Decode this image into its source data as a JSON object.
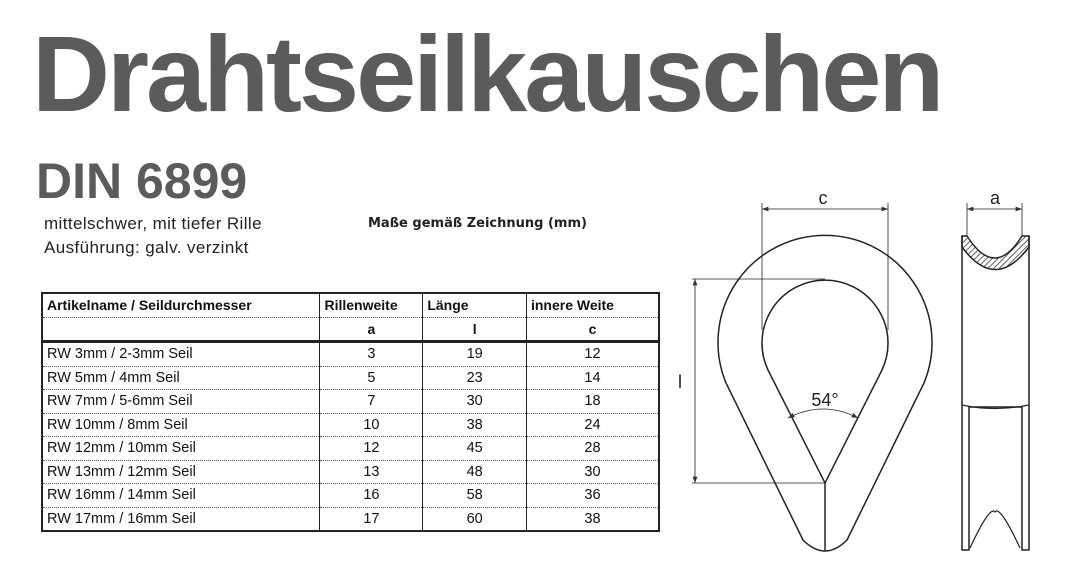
{
  "title": "Drahtseilkauschen",
  "subtitle": "DIN 6899",
  "description": [
    "mittelschwer, mit tiefer Rille",
    "Ausführung: galv. verzinkt"
  ],
  "note": "Maße gemäß Zeichnung (mm)",
  "table": {
    "headers": [
      "Artikelname / Seildurchmesser",
      "Rillenweite",
      "Länge",
      "innere Weite"
    ],
    "symbols": [
      "",
      "a",
      "l",
      "c"
    ],
    "rows": [
      [
        "RW 3mm / 2-3mm Seil",
        "3",
        "19",
        "12"
      ],
      [
        "RW 5mm / 4mm Seil",
        "5",
        "23",
        "14"
      ],
      [
        "RW 7mm / 5-6mm Seil",
        "7",
        "30",
        "18"
      ],
      [
        "RW 10mm / 8mm Seil",
        "10",
        "38",
        "24"
      ],
      [
        "RW 12mm / 10mm Seil",
        "12",
        "45",
        "28"
      ],
      [
        "RW 13mm / 12mm Seil",
        "13",
        "48",
        "30"
      ],
      [
        "RW 16mm / 14mm Seil",
        "16",
        "58",
        "36"
      ],
      [
        "RW 17mm / 16mm Seil",
        "17",
        "60",
        "38"
      ]
    ]
  },
  "drawing": {
    "label_c": "c",
    "label_l": "l",
    "label_a": "a",
    "angle": "54°"
  },
  "colors": {
    "title": "#5b5b5b"
  }
}
